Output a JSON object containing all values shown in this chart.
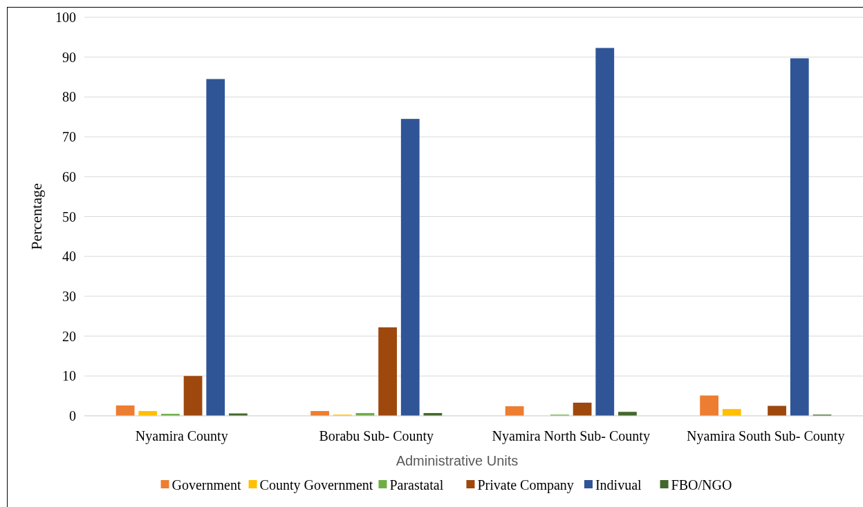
{
  "chart_data": {
    "type": "bar",
    "xlabel": "Administrative Units",
    "ylabel": "Percentage",
    "categories": [
      "Nyamira County",
      "Borabu Sub- County",
      "Nyamira North Sub- County",
      "Nyamira South Sub- County"
    ],
    "series": [
      {
        "name": "Government",
        "color": "#ed7d31",
        "values": [
          2.6,
          1.2,
          2.4,
          5.1
        ]
      },
      {
        "name": "County Government",
        "color": "#ffc000",
        "values": [
          1.2,
          0.3,
          0,
          1.7
        ]
      },
      {
        "name": "Parastatal",
        "color": "#70ad47",
        "values": [
          0.5,
          0.7,
          0.3,
          0
        ]
      },
      {
        "name": "Private Company",
        "color": "#9e480e",
        "values": [
          10,
          22.2,
          3.3,
          2.5
        ]
      },
      {
        "name": "Indivual",
        "color": "#2f5597",
        "values": [
          84.5,
          74.5,
          92.3,
          89.7
        ]
      },
      {
        "name": "FBO/NGO",
        "color": "#43682b",
        "values": [
          0.6,
          0.7,
          1.0,
          0.3
        ]
      }
    ],
    "ylim": [
      0,
      100
    ],
    "yticks": [
      0,
      10,
      20,
      30,
      40,
      50,
      60,
      70,
      80,
      90,
      100
    ],
    "grid": "y",
    "legend": "bottom"
  }
}
